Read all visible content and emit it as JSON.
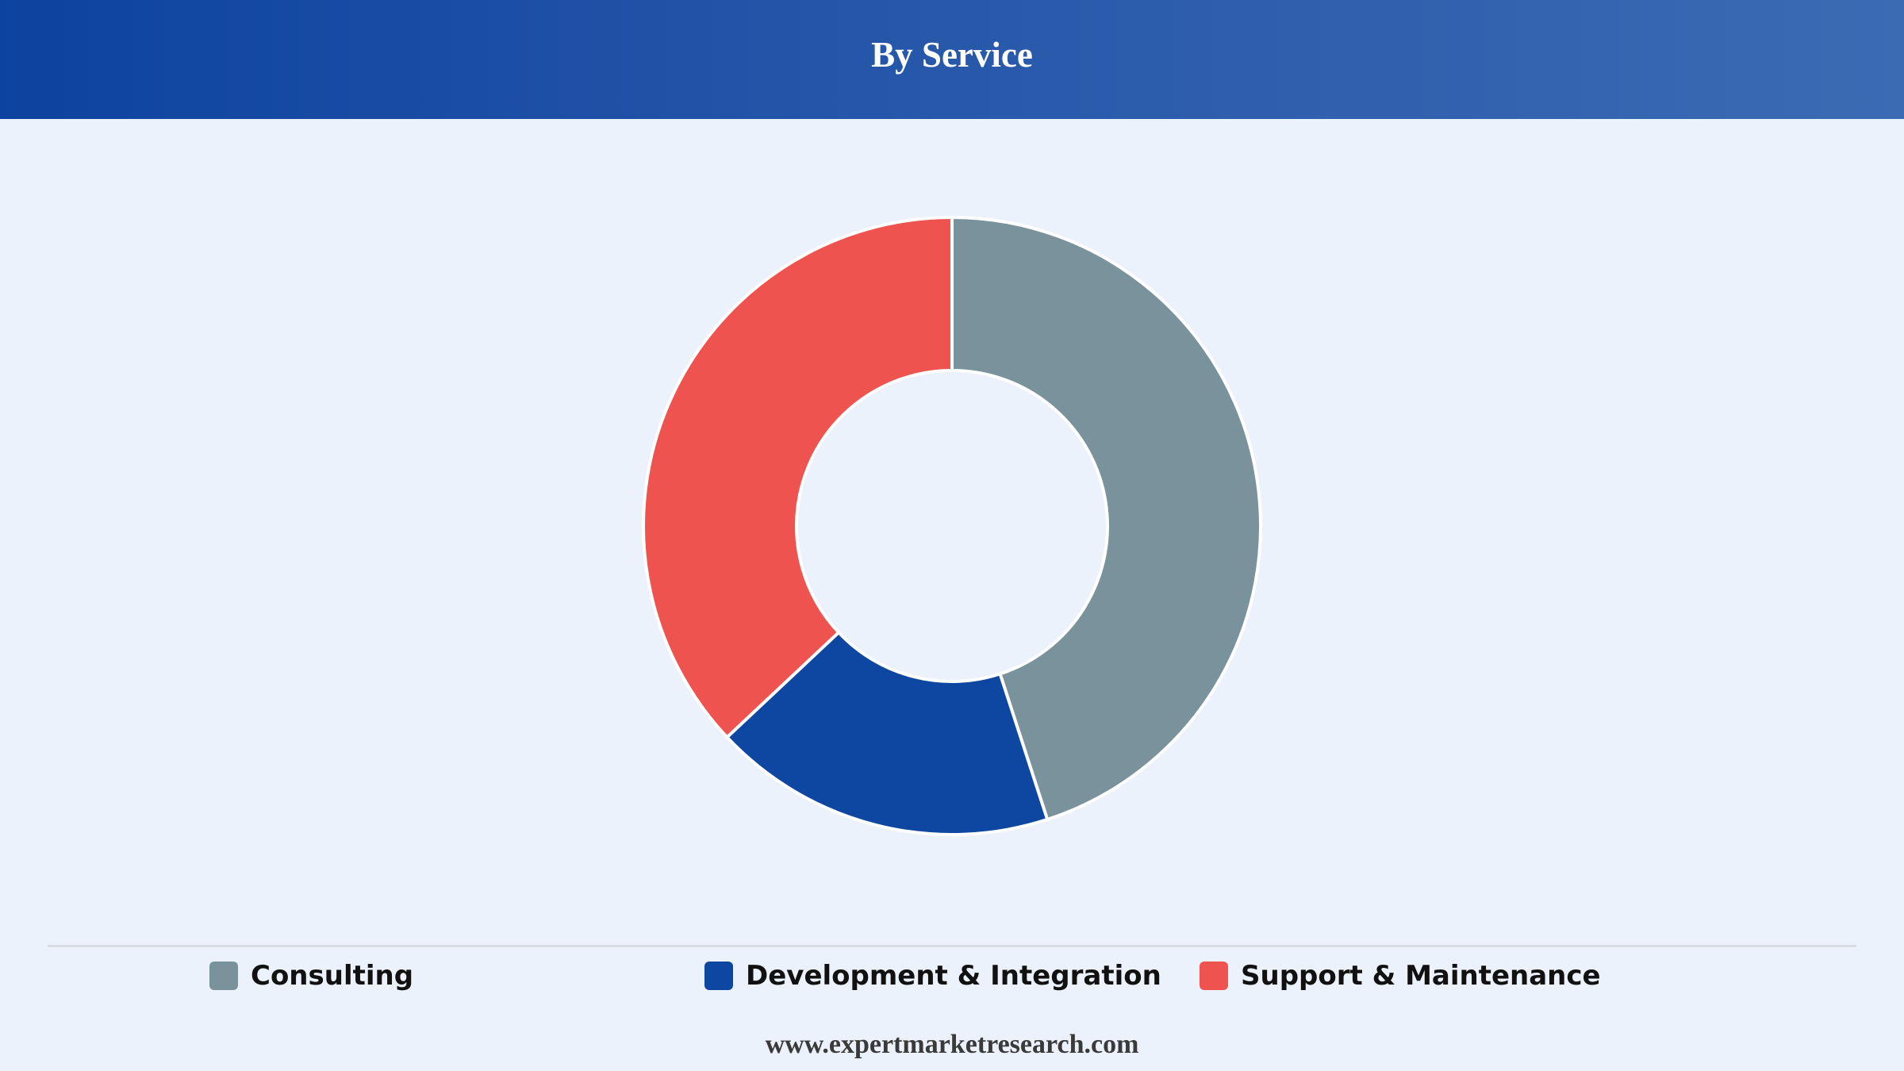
{
  "header": {
    "title": "By Service"
  },
  "chart_data": {
    "type": "pie",
    "variant": "donut",
    "title": "By Service",
    "categories": [
      "Consulting",
      "Development & Integration",
      "Support & Maintenance"
    ],
    "values": [
      45,
      18,
      37
    ],
    "unit": "%",
    "colors": [
      "#7a929c",
      "#0d47a1",
      "#ef5350"
    ],
    "legend_position": "bottom"
  },
  "legend": {
    "items": [
      {
        "label": "Consulting",
        "color": "#7a929c"
      },
      {
        "label": "Development & Integration",
        "color": "#0d47a1"
      },
      {
        "label": "Support & Maintenance",
        "color": "#ef5350"
      }
    ]
  },
  "footer": {
    "source": "www.expertmarketresearch.com"
  }
}
